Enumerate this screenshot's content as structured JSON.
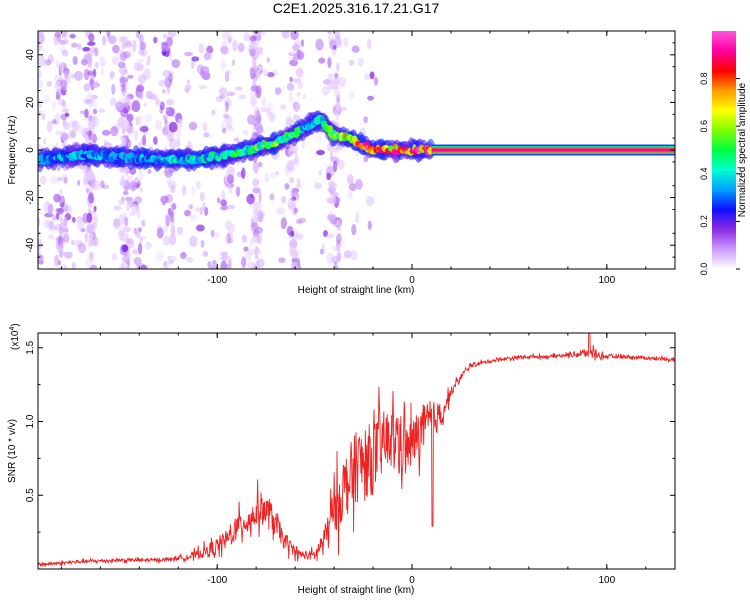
{
  "figure": {
    "title": "C2E1.2025.316.17.21.G17"
  },
  "chart_data": [
    {
      "type": "heatmap",
      "panel": "top",
      "title": "C2E1.2025.316.17.21.G17",
      "xlabel": "Height of straight line (km)",
      "ylabel": "Frequency (Hz)",
      "xlim": [
        -192,
        135
      ],
      "ylim": [
        -50,
        50
      ],
      "xticks": [
        -100,
        0,
        100
      ],
      "yticks": [
        -40,
        -20,
        0,
        20,
        40
      ],
      "colorbar": {
        "label": "Normalized spectral amplitude",
        "range": [
          0,
          1
        ],
        "ticks": [
          0.0,
          0.2,
          0.4,
          0.6,
          0.8
        ],
        "tick_labels": [
          "0.0",
          "0.2",
          "0.4",
          "0.6",
          "0.8"
        ],
        "colormap": [
          "#ffffff",
          "#cc99ff",
          "#8a2be2",
          "#1010ff",
          "#00a0ff",
          "#00ffd0",
          "#00ff40",
          "#80ff00",
          "#ffff00",
          "#ff9900",
          "#ff0000",
          "#ff00a0",
          "#ff55dd"
        ]
      },
      "ridge": {
        "description": "dominant frequency track",
        "x": [
          -192,
          -170,
          -150,
          -130,
          -110,
          -90,
          -80,
          -70,
          -60,
          -52,
          -47,
          -40,
          -33,
          -25,
          -20,
          -10,
          0,
          10,
          50,
          100,
          135
        ],
        "y": [
          -4,
          -2,
          -3,
          -4,
          -4,
          -1,
          1,
          3,
          7,
          11,
          13,
          6,
          5,
          2,
          0,
          0,
          0,
          0,
          0,
          0,
          0
        ],
        "peak_amplitude": [
          0.35,
          0.4,
          0.35,
          0.4,
          0.45,
          0.5,
          0.55,
          0.6,
          0.55,
          0.4,
          0.5,
          0.6,
          0.75,
          0.85,
          0.9,
          0.9,
          0.9,
          1.0,
          1.0,
          1.0,
          1.0
        ]
      }
    },
    {
      "type": "line",
      "panel": "bottom",
      "xlabel": "Height of straight line (km)",
      "ylabel": "SNR (10 * v/v)",
      "y_multiplier": "(x10",
      "y_multiplier_exponent": "4",
      "y_multiplier_close": ")",
      "xlim": [
        -192,
        135
      ],
      "ylim": [
        0,
        1.6
      ],
      "xticks": [
        -100,
        0,
        100
      ],
      "yticks": [
        0.5,
        1.0,
        1.5
      ],
      "ytick_labels": [
        "0.5",
        "1.0",
        "1.5"
      ],
      "color": "#ee2222",
      "series": [
        {
          "name": "SNR",
          "x": [
            -192,
            -170,
            -150,
            -130,
            -115,
            -105,
            -95,
            -88,
            -82,
            -78,
            -72,
            -65,
            -58,
            -50,
            -45,
            -40,
            -35,
            -28,
            -20,
            -15,
            -8,
            -3,
            0,
            5,
            10,
            15,
            20,
            25,
            30,
            40,
            50,
            60,
            70,
            80,
            88,
            92,
            96,
            100,
            110,
            120,
            135
          ],
          "y": [
            0.03,
            0.05,
            0.06,
            0.06,
            0.08,
            0.12,
            0.2,
            0.3,
            0.35,
            0.42,
            0.35,
            0.18,
            0.1,
            0.09,
            0.2,
            0.4,
            0.55,
            0.7,
            0.75,
            0.85,
            0.9,
            0.8,
            0.85,
            0.95,
            1.0,
            1.05,
            1.2,
            1.3,
            1.38,
            1.41,
            1.43,
            1.44,
            1.44,
            1.45,
            1.46,
            1.48,
            1.45,
            1.44,
            1.44,
            1.43,
            1.42
          ],
          "noise_amplitude": [
            0.02,
            0.02,
            0.02,
            0.02,
            0.03,
            0.08,
            0.12,
            0.16,
            0.18,
            0.2,
            0.18,
            0.1,
            0.05,
            0.06,
            0.15,
            0.3,
            0.4,
            0.45,
            0.45,
            0.4,
            0.35,
            0.35,
            0.3,
            0.3,
            0.25,
            0.15,
            0.06,
            0.04,
            0.03,
            0.02,
            0.02,
            0.02,
            0.02,
            0.02,
            0.06,
            0.08,
            0.04,
            0.02,
            0.02,
            0.02,
            0.02
          ]
        }
      ]
    }
  ]
}
